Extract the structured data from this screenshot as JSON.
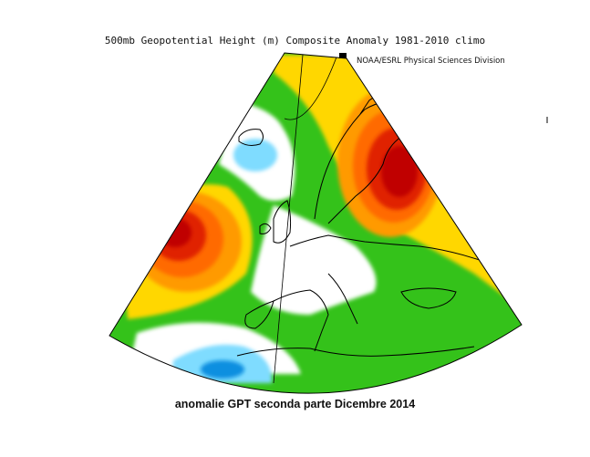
{
  "header": {
    "title": "500mb Geopotential Height (m) Composite Anomaly 1981-2010 climo",
    "credit": "NOAA/ESRL Physical Sciences Division"
  },
  "footer": {
    "caption": "anomalie GPT seconda parte Dicembre 2014"
  },
  "map": {
    "projection": "conic",
    "region": "Europe / North Atlantic",
    "field": "500mb geopotential height anomaly",
    "anomaly_centers": [
      {
        "location": "Scandinavia / Northwest Russia",
        "sign": "positive",
        "color": "#c00000"
      },
      {
        "location": "North Atlantic west of Iberia",
        "sign": "positive",
        "color": "#c00000"
      },
      {
        "location": "Near Greenland / Labrador",
        "sign": "negative",
        "color": "#7fdcff"
      },
      {
        "location": "Subtropical Atlantic",
        "sign": "negative",
        "color": "#0d8fe0"
      },
      {
        "location": "Central Europe",
        "sign": "near zero",
        "color": "#ffffff"
      }
    ],
    "colors": {
      "strong_positive": "#c00000",
      "positive": "#ff6a00",
      "moderate_positive": "#ffd700",
      "weak_positive": "#34c21a",
      "neutral": "#ffffff",
      "weak_negative": "#7fdcff",
      "negative": "#0d8fe0"
    }
  }
}
